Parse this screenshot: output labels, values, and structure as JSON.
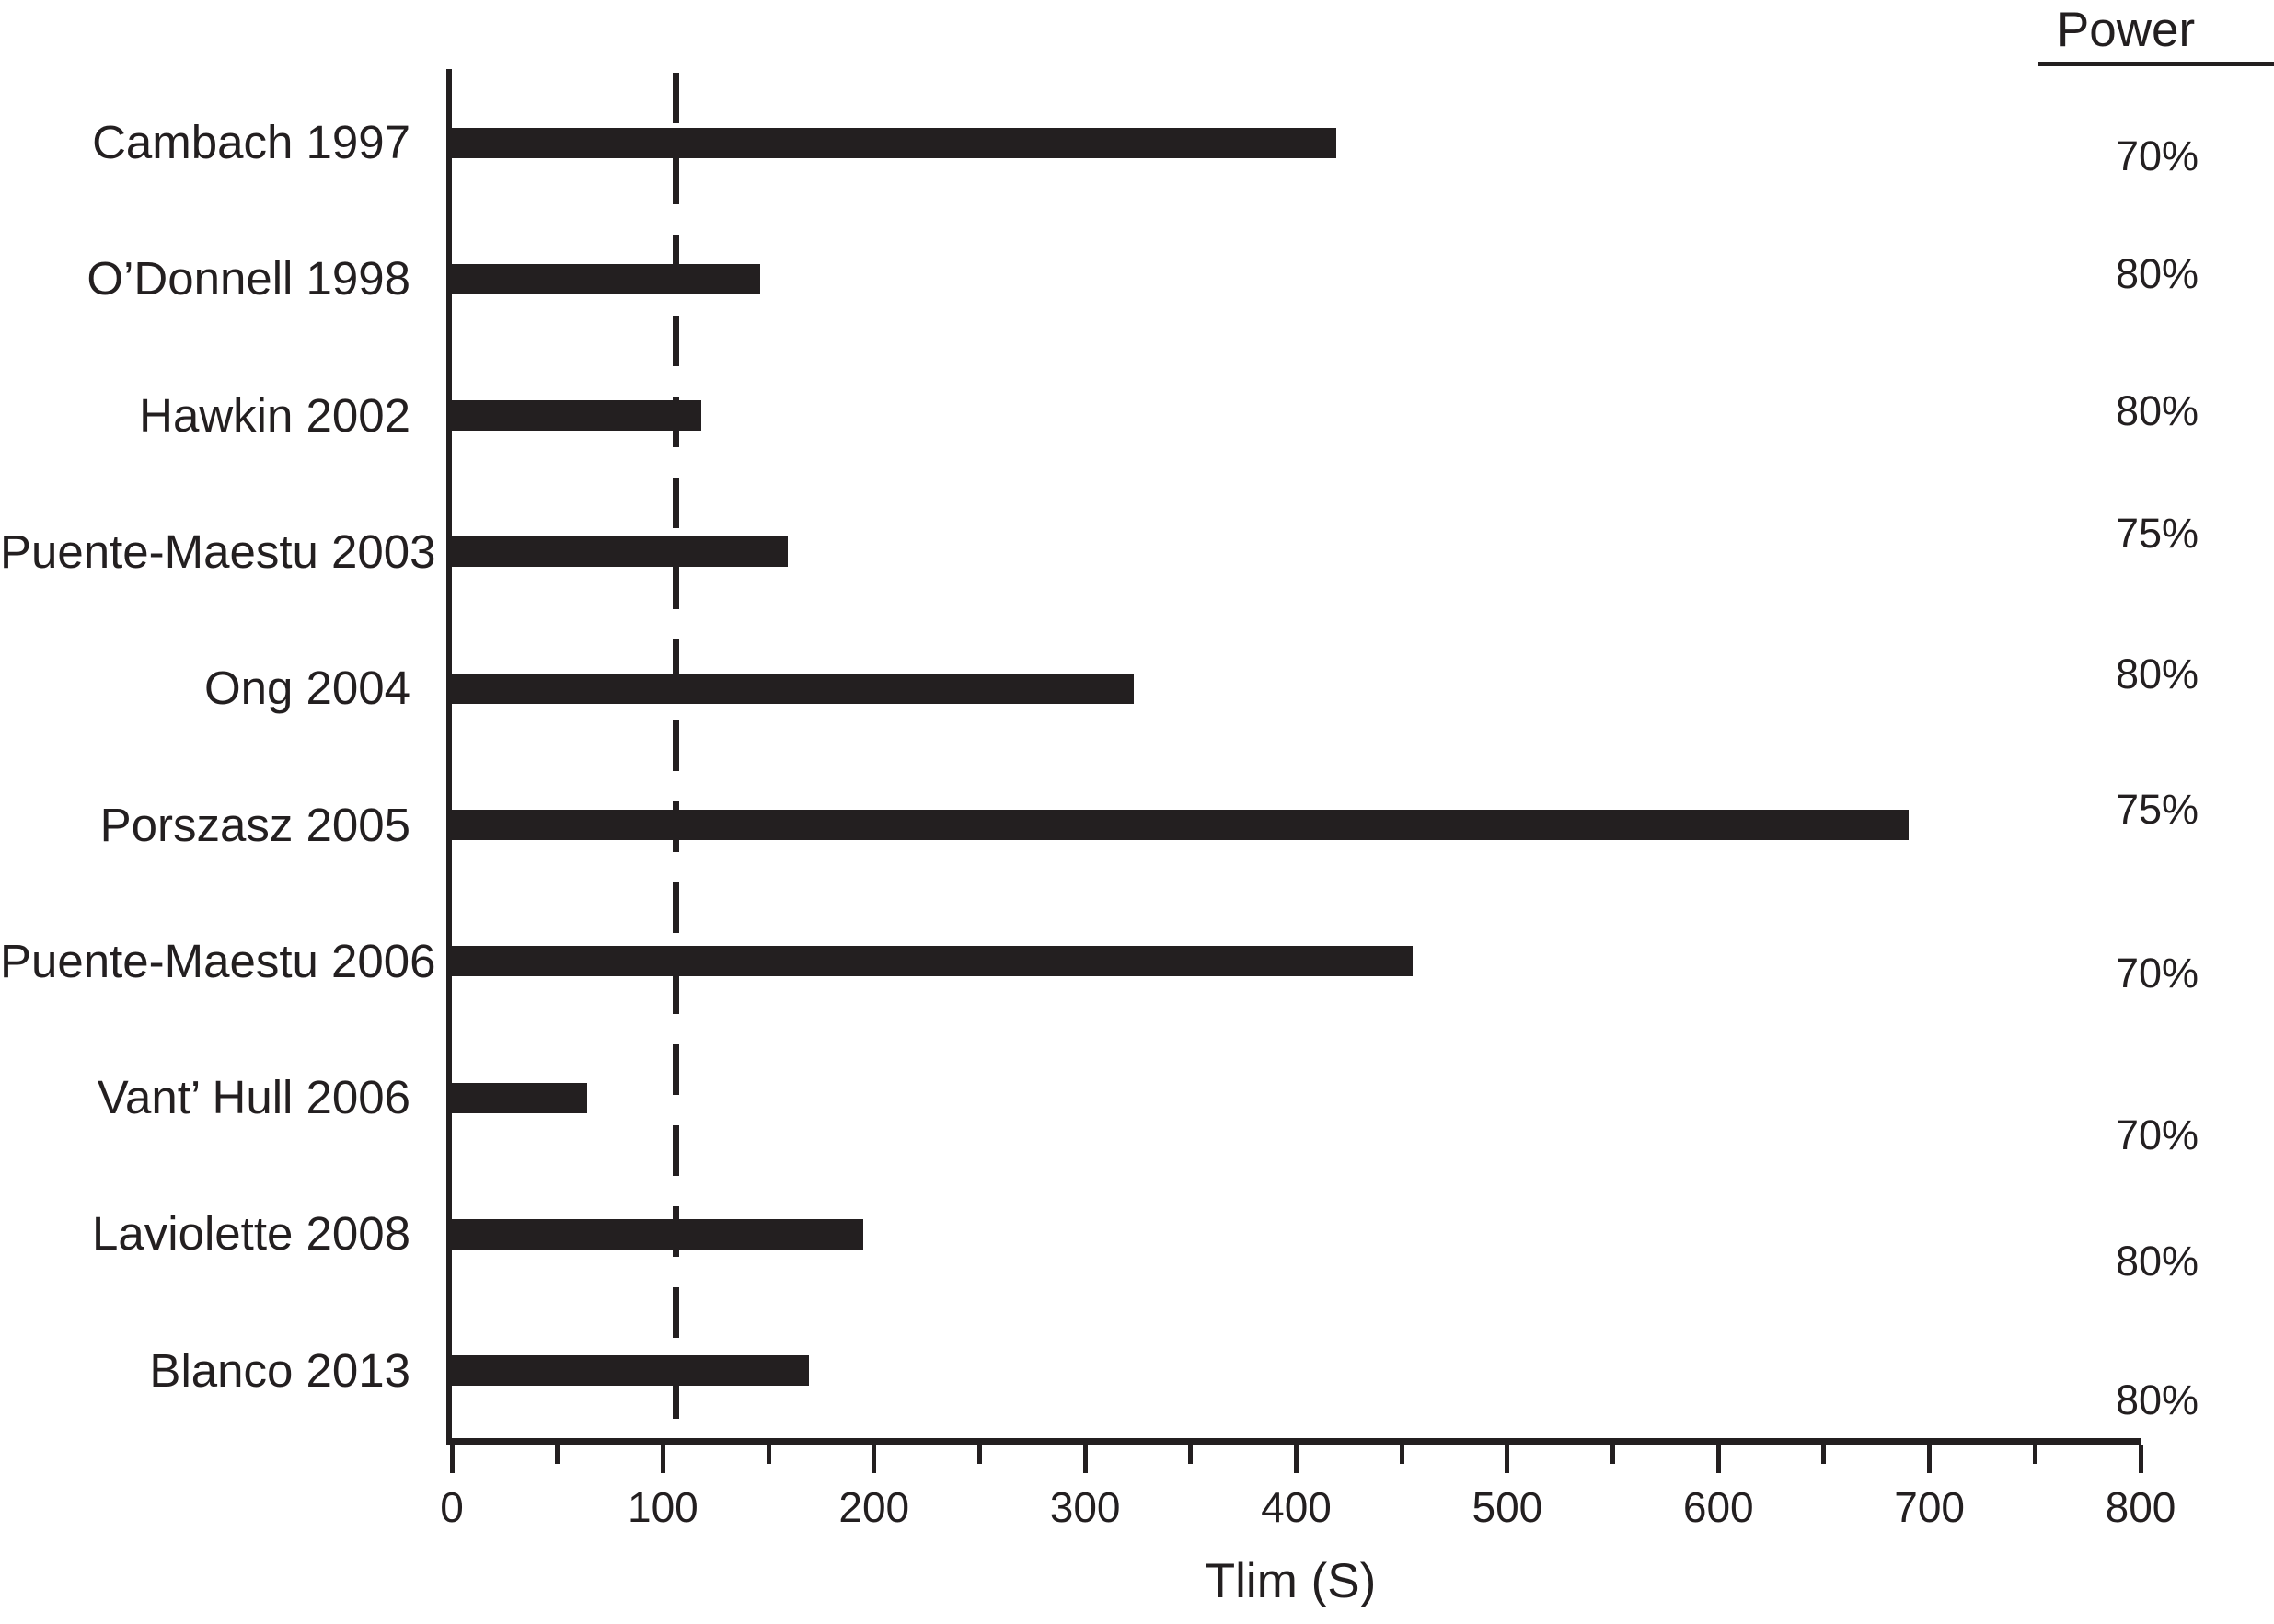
{
  "chart_data": {
    "type": "bar",
    "orientation": "horizontal",
    "title": "",
    "xlabel": "Tlim (S)",
    "xlim": [
      0,
      800
    ],
    "x_major_ticks": [
      0,
      100,
      200,
      300,
      400,
      500,
      600,
      700,
      800
    ],
    "x_minor_ticks": [
      50,
      150,
      250,
      350,
      450,
      550,
      650,
      750
    ],
    "grid": "off",
    "bar_color": "#231f20",
    "categories": [
      "Cambach 1997",
      "O’Donnell 1998",
      "Hawkin 2002",
      "Puente-Maestu 2003",
      "Ong 2004",
      "Porszasz 2005",
      "Puente-Maestu 2006",
      "Vant’ Hull 2006",
      "Laviolette 2008",
      "Blanco 2013"
    ],
    "values": [
      419,
      146,
      118,
      159,
      323,
      690,
      455,
      64,
      195,
      169
    ],
    "reference_line_x": 106,
    "power_column": {
      "header": "Power",
      "values": [
        "70%",
        "80%",
        "80%",
        "75%",
        "80%",
        "75%",
        "70%",
        "70%",
        "80%",
        "80%"
      ]
    }
  }
}
